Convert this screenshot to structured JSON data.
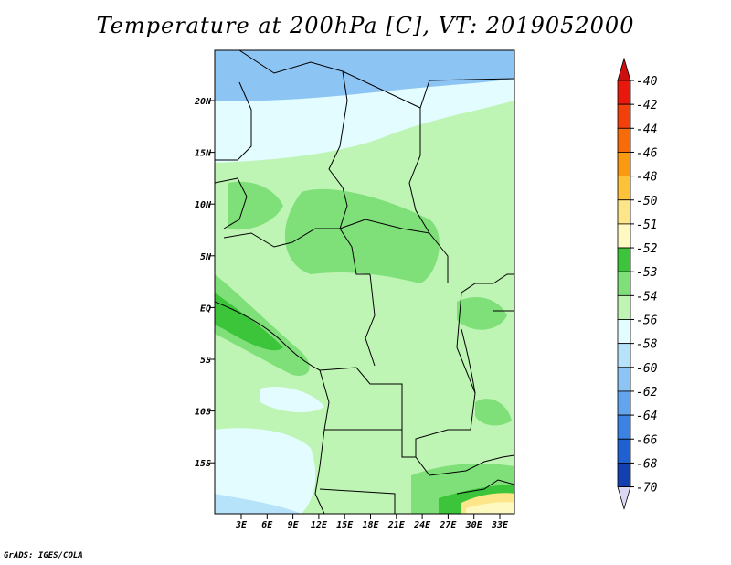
{
  "title": "Temperature at 200hPa [C], VT: 2019052000",
  "credit": "GrADS: IGES/COLA",
  "map": {
    "lon_labels": [
      "3E",
      "6E",
      "9E",
      "12E",
      "15E",
      "18E",
      "21E",
      "24E",
      "27E",
      "30E",
      "33E"
    ],
    "lat_labels": [
      "20N",
      "15N",
      "10N",
      "5N",
      "EQ",
      "5S",
      "10S",
      "15S"
    ]
  },
  "colorbar": {
    "levels": [
      {
        "label": "-40",
        "color": "#e8180c"
      },
      {
        "label": "-42",
        "color": "#f2400a"
      },
      {
        "label": "-44",
        "color": "#f76b08"
      },
      {
        "label": "-46",
        "color": "#fb9a10"
      },
      {
        "label": "-48",
        "color": "#fcc23a"
      },
      {
        "label": "-50",
        "color": "#fde68a"
      },
      {
        "label": "-51",
        "color": "#fdf9c0"
      },
      {
        "label": "-52",
        "color": "#3cc43a"
      },
      {
        "label": "-53",
        "color": "#7fe07a"
      },
      {
        "label": "-54",
        "color": "#bff5b4"
      },
      {
        "label": "-56",
        "color": "#e2fcff"
      },
      {
        "label": "-58",
        "color": "#b6e2fa"
      },
      {
        "label": "-60",
        "color": "#8cc4f4"
      },
      {
        "label": "-62",
        "color": "#62a4ee"
      },
      {
        "label": "-64",
        "color": "#3a82e4"
      },
      {
        "label": "-66",
        "color": "#1f60d2"
      },
      {
        "label": "-68",
        "color": "#1240b0"
      },
      {
        "label": "-70",
        "color": "#0b2a86"
      }
    ],
    "top_arrow_color": "#cc1010",
    "bottom_arrow_color": "#dcd8f4"
  }
}
